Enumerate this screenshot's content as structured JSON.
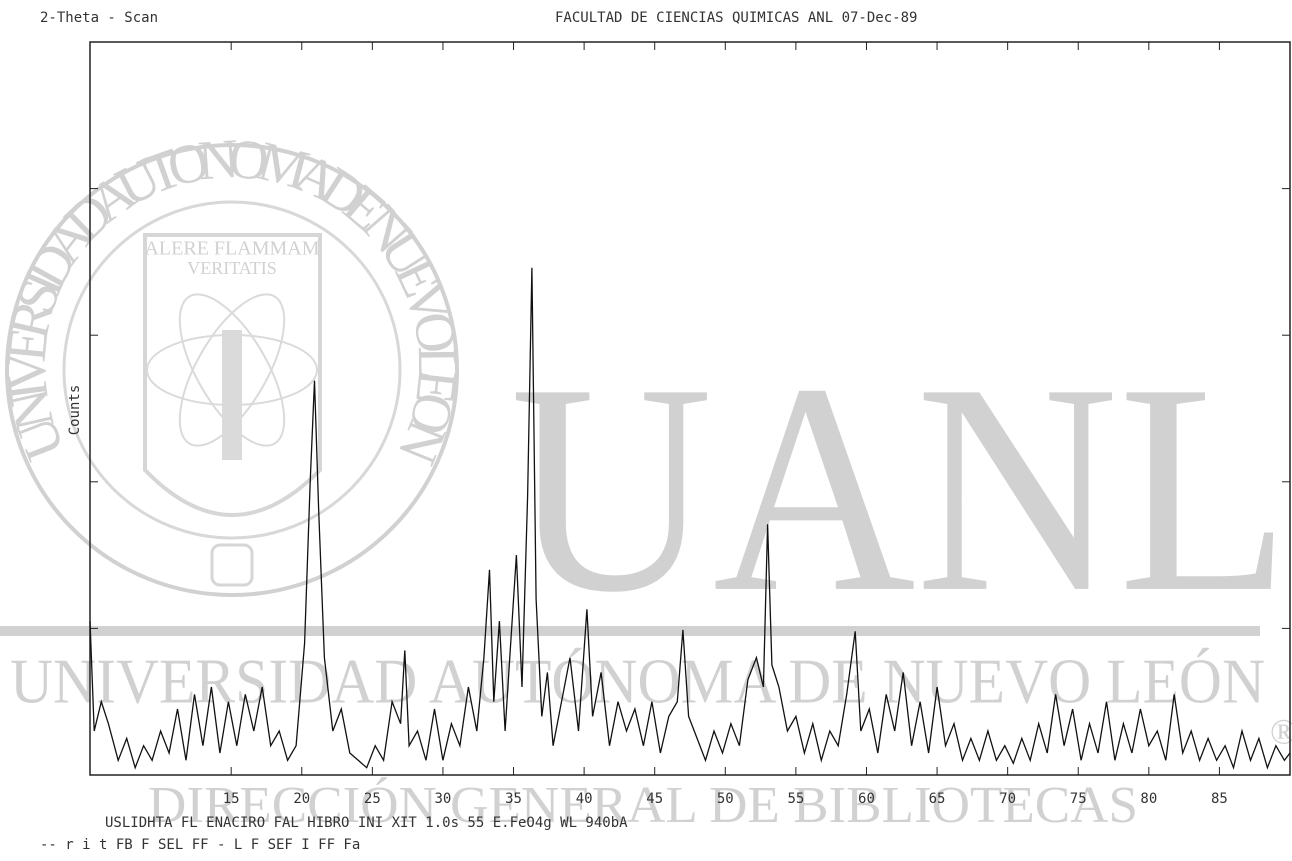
{
  "chart_data": {
    "type": "line",
    "header_left": "2-Theta - Scan",
    "header_right": "FACULTAD DE CIENCIAS QUIMICAS   ANL   07-Dec-89",
    "y_label": "Counts",
    "footer": [
      "USLIDHTA FL ENACIRO FAL HIBRO INI XIT   1.0s   55 E.FeO4g  WL   940bA",
      "-- r i t FB  F  SEL FF -  L F  SEF   I    FF Fa"
    ],
    "xlim": [
      5,
      90
    ],
    "ylim": [
      0,
      5
    ],
    "xticks": [
      15,
      20,
      25,
      30,
      35,
      40,
      45,
      50,
      55,
      60,
      65,
      70,
      75,
      80,
      85
    ],
    "yticks": [
      0,
      1,
      2,
      3,
      4,
      5
    ],
    "color": "#111111",
    "x": [
      5.0,
      5.3,
      5.8,
      6.3,
      7.0,
      7.6,
      8.2,
      8.8,
      9.4,
      10.0,
      10.6,
      11.2,
      11.8,
      12.4,
      13.0,
      13.6,
      14.2,
      14.8,
      15.4,
      16.0,
      16.6,
      17.2,
      17.8,
      18.4,
      19.0,
      19.6,
      20.2,
      20.6,
      20.9,
      21.2,
      21.6,
      22.2,
      22.8,
      23.4,
      24.0,
      24.6,
      25.2,
      25.8,
      26.4,
      27.0,
      27.3,
      27.6,
      28.2,
      28.8,
      29.4,
      30.0,
      30.6,
      31.2,
      31.8,
      32.4,
      32.9,
      33.3,
      33.6,
      34.0,
      34.4,
      34.8,
      35.2,
      35.6,
      36.0,
      36.3,
      36.6,
      37.0,
      37.4,
      37.8,
      38.4,
      39.0,
      39.6,
      40.2,
      40.6,
      41.2,
      41.8,
      42.4,
      43.0,
      43.6,
      44.2,
      44.8,
      45.4,
      46.0,
      46.6,
      47.0,
      47.4,
      48.0,
      48.6,
      49.2,
      49.8,
      50.4,
      51.0,
      51.6,
      52.2,
      52.7,
      53.0,
      53.3,
      53.8,
      54.4,
      55.0,
      55.6,
      56.2,
      56.8,
      57.4,
      58.0,
      58.6,
      59.2,
      59.6,
      60.2,
      60.8,
      61.4,
      62.0,
      62.6,
      63.2,
      63.8,
      64.4,
      65.0,
      65.6,
      66.2,
      66.8,
      67.4,
      68.0,
      68.6,
      69.2,
      69.8,
      70.4,
      71.0,
      71.6,
      72.2,
      72.8,
      73.4,
      74.0,
      74.6,
      75.2,
      75.8,
      76.4,
      77.0,
      77.6,
      78.2,
      78.8,
      79.4,
      80.0,
      80.6,
      81.2,
      81.8,
      82.4,
      83.0,
      83.6,
      84.2,
      84.8,
      85.4,
      86.0,
      86.6,
      87.2,
      87.8,
      88.4,
      89.0,
      89.6,
      90.0
    ],
    "values": [
      1.05,
      0.3,
      0.5,
      0.35,
      0.1,
      0.25,
      0.05,
      0.2,
      0.1,
      0.3,
      0.15,
      0.45,
      0.1,
      0.55,
      0.2,
      0.6,
      0.15,
      0.5,
      0.2,
      0.55,
      0.3,
      0.6,
      0.2,
      0.3,
      0.1,
      0.2,
      0.9,
      2.0,
      2.69,
      1.8,
      0.8,
      0.3,
      0.45,
      0.15,
      0.1,
      0.05,
      0.2,
      0.1,
      0.5,
      0.35,
      0.85,
      0.2,
      0.3,
      0.1,
      0.45,
      0.1,
      0.35,
      0.2,
      0.6,
      0.3,
      0.8,
      1.4,
      0.5,
      1.05,
      0.3,
      0.9,
      1.5,
      0.6,
      1.9,
      3.46,
      1.2,
      0.4,
      0.7,
      0.2,
      0.5,
      0.8,
      0.3,
      1.13,
      0.4,
      0.7,
      0.2,
      0.5,
      0.3,
      0.45,
      0.2,
      0.5,
      0.15,
      0.4,
      0.5,
      0.99,
      0.4,
      0.25,
      0.1,
      0.3,
      0.15,
      0.35,
      0.2,
      0.65,
      0.8,
      0.6,
      1.71,
      0.75,
      0.6,
      0.3,
      0.4,
      0.15,
      0.35,
      0.1,
      0.3,
      0.2,
      0.55,
      0.98,
      0.3,
      0.45,
      0.15,
      0.55,
      0.3,
      0.7,
      0.2,
      0.5,
      0.15,
      0.6,
      0.2,
      0.35,
      0.1,
      0.25,
      0.1,
      0.3,
      0.1,
      0.2,
      0.08,
      0.25,
      0.1,
      0.35,
      0.15,
      0.55,
      0.2,
      0.45,
      0.1,
      0.35,
      0.15,
      0.5,
      0.1,
      0.35,
      0.15,
      0.45,
      0.2,
      0.3,
      0.1,
      0.55,
      0.15,
      0.3,
      0.1,
      0.25,
      0.1,
      0.2,
      0.05,
      0.3,
      0.1,
      0.25,
      0.05,
      0.2,
      0.1,
      0.15
    ]
  },
  "watermark": {
    "logo": "UANL",
    "university": "UNIVERSIDAD AUTÓNOMA DE NUEVO LEÓN",
    "library": "DIRECCIÓN GENERAL DE BIBLIOTECAS",
    "seal_ring": "UNIVERSIDAD AUTONOMA DE NUEVO LEON",
    "motto_1": "ALERE FLAMMAM",
    "motto_2": "VERITATIS",
    "registered": "®"
  }
}
